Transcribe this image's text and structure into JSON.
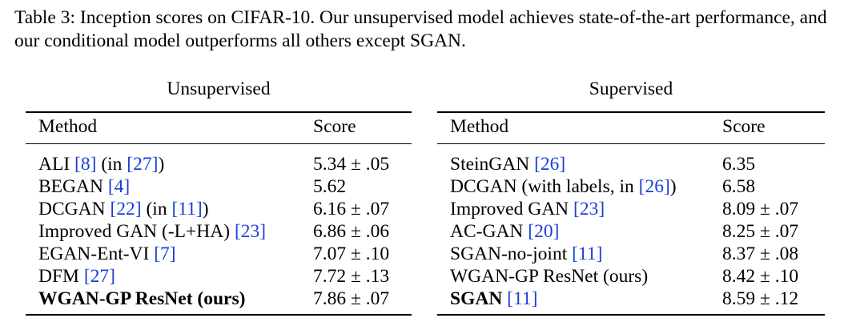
{
  "caption": "Table 3:  Inception scores on CIFAR-10. Our unsupervised model achieves state-of-the-art performance, and our conditional model outperforms all others except SGAN.",
  "tables": [
    {
      "title": "Unsupervised",
      "headers": [
        "Method",
        "Score"
      ],
      "rows": [
        {
          "method": [
            {
              "t": "ALI "
            },
            {
              "t": "[8]",
              "cite": true
            },
            {
              "t": " (in "
            },
            {
              "t": "[27]",
              "cite": true
            },
            {
              "t": ")"
            }
          ],
          "score": "5.34 ± .05"
        },
        {
          "method": [
            {
              "t": "BEGAN "
            },
            {
              "t": "[4]",
              "cite": true
            }
          ],
          "score": "5.62"
        },
        {
          "method": [
            {
              "t": "DCGAN "
            },
            {
              "t": "[22]",
              "cite": true
            },
            {
              "t": " (in "
            },
            {
              "t": "[11]",
              "cite": true
            },
            {
              "t": ")"
            }
          ],
          "score": "6.16 ± .07"
        },
        {
          "method": [
            {
              "t": "Improved GAN (-L+HA) "
            },
            {
              "t": "[23]",
              "cite": true
            }
          ],
          "score": "6.86 ± .06"
        },
        {
          "method": [
            {
              "t": "EGAN-Ent-VI "
            },
            {
              "t": "[7]",
              "cite": true
            }
          ],
          "score": "7.07 ± .10"
        },
        {
          "method": [
            {
              "t": "DFM "
            },
            {
              "t": "[27]",
              "cite": true
            }
          ],
          "score": "7.72 ± .13"
        },
        {
          "method": [
            {
              "t": "WGAN-GP ResNet (ours)",
              "bold": true
            }
          ],
          "score": "7.86 ± .07"
        }
      ]
    },
    {
      "title": "Supervised",
      "headers": [
        "Method",
        "Score"
      ],
      "rows": [
        {
          "method": [
            {
              "t": "SteinGAN "
            },
            {
              "t": "[26]",
              "cite": true
            }
          ],
          "score": "6.35"
        },
        {
          "method": [
            {
              "t": "DCGAN (with labels, in "
            },
            {
              "t": "[26]",
              "cite": true
            },
            {
              "t": ")"
            }
          ],
          "score": "6.58"
        },
        {
          "method": [
            {
              "t": "Improved GAN "
            },
            {
              "t": "[23]",
              "cite": true
            }
          ],
          "score": "8.09 ± .07"
        },
        {
          "method": [
            {
              "t": "AC-GAN "
            },
            {
              "t": "[20]",
              "cite": true
            }
          ],
          "score": "8.25 ± .07"
        },
        {
          "method": [
            {
              "t": "SGAN-no-joint "
            },
            {
              "t": "[11]",
              "cite": true
            }
          ],
          "score": "8.37 ± .08"
        },
        {
          "method": [
            {
              "t": "WGAN-GP ResNet (ours)"
            }
          ],
          "score": "8.42 ± .10"
        },
        {
          "method": [
            {
              "t": "SGAN",
              "bold": true
            },
            {
              "t": " "
            },
            {
              "t": "[11]",
              "cite": true
            }
          ],
          "score": "8.59 ± .12"
        }
      ]
    }
  ]
}
